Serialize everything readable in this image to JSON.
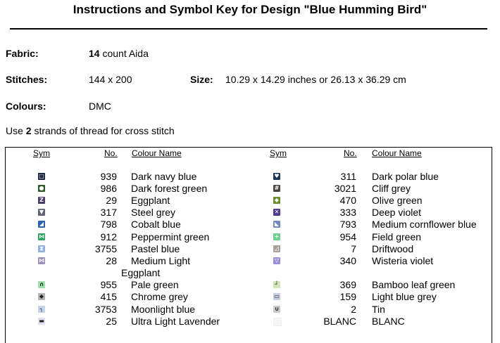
{
  "title": "Instructions and Symbol Key for Design \"Blue Humming Bird\"",
  "fabric": {
    "label": "Fabric:",
    "count": "14",
    "rest": " count Aida"
  },
  "stitches": {
    "label": "Stitches:",
    "value": "144 x 200"
  },
  "size": {
    "label": "Size:",
    "value": "10.29 x 14.29 inches or 26.13 x 36.29 cm"
  },
  "colours": {
    "label": "Colours:",
    "value": "DMC"
  },
  "instruction": {
    "pre": "Use ",
    "strands": "2",
    "post": " strands of thread for cross stitch"
  },
  "headers": {
    "sym": "Sym",
    "no": "No.",
    "name": "Colour Name"
  },
  "left_rows": [
    {
      "no": "939",
      "name": "Dark navy blue",
      "color": "#1c2740",
      "glyph": "□",
      "icon": "square-outline-icon"
    },
    {
      "no": "986",
      "name": "Dark forest green",
      "color": "#2f5a2a",
      "glyph": "●",
      "icon": "circle-icon"
    },
    {
      "no": "29",
      "name": "Eggplant",
      "color": "#4a3d6a",
      "glyph": "Z",
      "icon": "z-letter-icon"
    },
    {
      "no": "317",
      "name": "Steel grey",
      "color": "#5e6470",
      "glyph": "▼",
      "icon": "triangle-down-icon"
    },
    {
      "no": "798",
      "name": "Cobalt blue",
      "color": "#2e5fb0",
      "glyph": "◢",
      "icon": "corner-triangle-icon"
    },
    {
      "no": "912",
      "name": "Peppermint green",
      "color": "#2fa266",
      "glyph": "⋈",
      "icon": "bowtie-icon"
    },
    {
      "no": "3755",
      "name": "Pastel blue",
      "color": "#8fb1e0",
      "glyph": "⧗",
      "icon": "hourglass-icon"
    },
    {
      "no": "28",
      "name": "Medium Light",
      "color": "#9a8fb8",
      "glyph": "⋈",
      "icon": "bowtie-icon"
    },
    {
      "no": "955",
      "name": "Pale green",
      "color": "#9fe0b0",
      "glyph": "∩",
      "icon": "arch-icon"
    },
    {
      "no": "415",
      "name": "Chrome grey",
      "color": "#b0b2b6",
      "glyph": "◆",
      "icon": "diamond-icon"
    },
    {
      "no": "3753",
      "name": "Moonlight blue",
      "color": "#c4d4ea",
      "glyph": "┐",
      "icon": "corner-bracket-icon"
    },
    {
      "no": "25",
      "name": "Ultra Light Lavender",
      "color": "#e2dcf0",
      "glyph": "▬",
      "icon": "bar-icon"
    }
  ],
  "left_wrap": "Eggplant",
  "right_rows": [
    {
      "no": "311",
      "name": "Dark polar blue",
      "color": "#1d3556",
      "glyph": "♥",
      "icon": "heart-icon"
    },
    {
      "no": "3021",
      "name": "Cliff grey",
      "color": "#4c4540",
      "glyph": "#",
      "icon": "hash-icon"
    },
    {
      "no": "470",
      "name": "Olive green",
      "color": "#6b8a2c",
      "glyph": "◆",
      "icon": "diamond-icon"
    },
    {
      "no": "333",
      "name": "Deep violet",
      "color": "#4f3a8c",
      "glyph": "✕",
      "icon": "x-mark-icon"
    },
    {
      "no": "793",
      "name": "Medium cornflower blue",
      "color": "#7389c0",
      "glyph": "◣",
      "icon": "corner-triangle-icon"
    },
    {
      "no": "954",
      "name": "Field green",
      "color": "#6fcf8e",
      "glyph": "+",
      "icon": "plus-icon"
    },
    {
      "no": "7",
      "name": "Driftwood",
      "color": "#a9a29a",
      "glyph": "◿",
      "icon": "corner-triangle-icon"
    },
    {
      "no": "340",
      "name": "Wisteria violet",
      "color": "#9b90d8",
      "glyph": "▽",
      "icon": "triangle-down-outline-icon"
    },
    {
      "no": "369",
      "name": "Bamboo leaf green",
      "color": "#cfe6b8",
      "glyph": "┘",
      "icon": "corner-bracket-icon"
    },
    {
      "no": "159",
      "name": "Light blue grey",
      "color": "#c5cde0",
      "glyph": "▭",
      "icon": "rectangle-icon"
    },
    {
      "no": "2",
      "name": "Tin",
      "color": "#c8c9cc",
      "glyph": "∪",
      "icon": "cup-icon"
    },
    {
      "no": "BLANC",
      "name": "BLANC",
      "color": "#f6f6f6",
      "glyph": "",
      "icon": "blank-icon"
    }
  ]
}
